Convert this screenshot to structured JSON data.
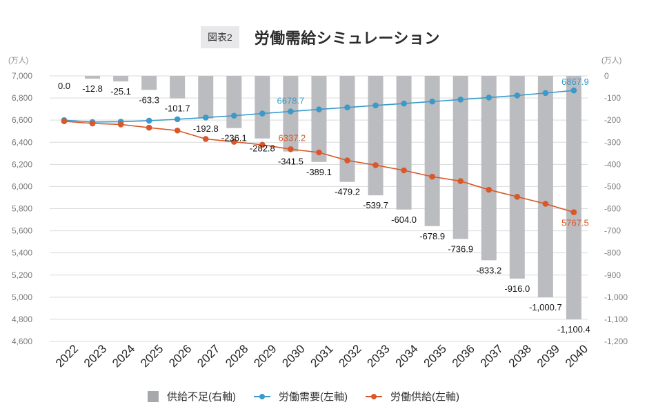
{
  "header": {
    "figure_badge": "図表2",
    "title": "労働需給シミュレーション"
  },
  "chart_data": {
    "type": "bar+line",
    "title": "労働需給シミュレーション",
    "figure_label": "図表2",
    "categories": [
      "2022",
      "2023",
      "2024",
      "2025",
      "2026",
      "2027",
      "2028",
      "2029",
      "2030",
      "2031",
      "2032",
      "2033",
      "2034",
      "2035",
      "2036",
      "2037",
      "2038",
      "2039",
      "2040"
    ],
    "left_axis": {
      "unit": "(万人)",
      "range": [
        4600,
        7000
      ],
      "ticks": [
        "7,000",
        "6,800",
        "6,600",
        "6,400",
        "6,200",
        "6,000",
        "5,800",
        "5,600",
        "5,400",
        "5,200",
        "5,000",
        "4,800",
        "4,600"
      ],
      "tick_values": [
        7000,
        6800,
        6600,
        6400,
        6200,
        6000,
        5800,
        5600,
        5400,
        5200,
        5000,
        4800,
        4600
      ]
    },
    "right_axis": {
      "unit": "(万人)",
      "range": [
        -1200,
        0
      ],
      "ticks": [
        "0",
        "-100",
        "-200",
        "-300",
        "-400",
        "-500",
        "-600",
        "-700",
        "-800",
        "-900",
        "-1,000",
        "-1,100",
        "-1,200"
      ],
      "tick_values": [
        0,
        -100,
        -200,
        -300,
        -400,
        -500,
        -600,
        -700,
        -800,
        -900,
        -1000,
        -1100,
        -1200
      ]
    },
    "grid": true,
    "legend_position": "bottom",
    "series": [
      {
        "name": "供給不足(右軸)",
        "type": "bar",
        "axis": "right",
        "color": "#bbbcbf",
        "values": [
          0.0,
          -12.8,
          -25.1,
          -63.3,
          -101.7,
          -192.8,
          -236.1,
          -282.8,
          -341.5,
          -389.1,
          -479.2,
          -539.7,
          -604.0,
          -678.9,
          -736.9,
          -833.2,
          -916.0,
          -1000.7,
          -1100.4
        ],
        "labels": [
          "0.0",
          "-12.8",
          "-25.1",
          "-63.3",
          "-101.7",
          "-192.8",
          "-236.1",
          "-282.8",
          "-341.5",
          "-389.1",
          "-479.2",
          "-539.7",
          "-604.0",
          "-678.9",
          "-736.9",
          "-833.2",
          "-916.0",
          "-1,000.7",
          "-1,100.4"
        ]
      },
      {
        "name": "労働需要(左軸)",
        "type": "line",
        "axis": "left",
        "color": "#3a9ac9",
        "values": [
          6600,
          6583,
          6586,
          6595,
          6608,
          6623,
          6640,
          6660,
          6678.7,
          6697,
          6715,
          6733,
          6750,
          6768,
          6786,
          6804,
          6823,
          6845,
          6867.9
        ],
        "annotations": [
          {
            "index": 8,
            "text": "6678.7"
          },
          {
            "index": 18,
            "text": "6867.9"
          }
        ]
      },
      {
        "name": "労働供給(左軸)",
        "type": "line",
        "axis": "left",
        "color": "#d9582b",
        "values": [
          6590,
          6570,
          6561,
          6532,
          6506,
          6430,
          6404,
          6377,
          6337.2,
          6308,
          6236,
          6193,
          6146,
          6089,
          6049,
          5971,
          5907,
          5844,
          5767.5
        ],
        "annotations": [
          {
            "index": 8,
            "text": "6337.2"
          },
          {
            "index": 18,
            "text": "5767.5"
          }
        ]
      }
    ]
  },
  "legend": {
    "items": [
      {
        "label": "供給不足(右軸)",
        "color": "#a7a8ab"
      },
      {
        "label": "労働需要(左軸)",
        "color": "#3a9ac9"
      },
      {
        "label": "労働供給(左軸)",
        "color": "#d9582b"
      }
    ]
  }
}
